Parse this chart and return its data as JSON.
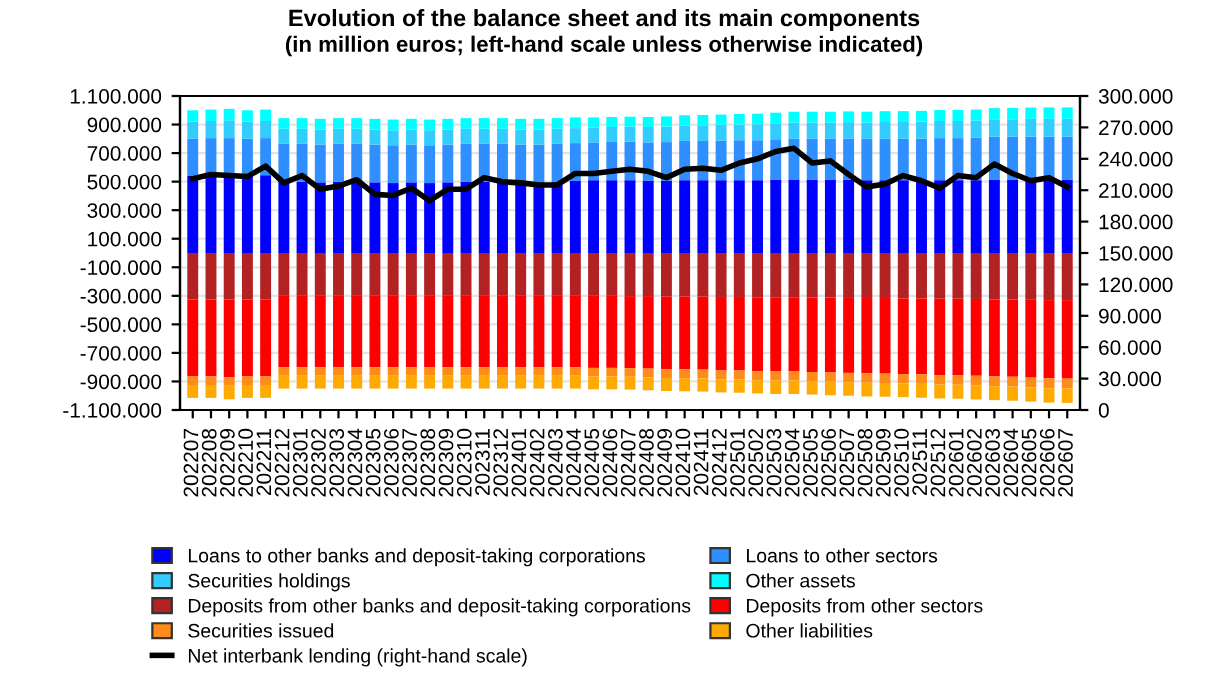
{
  "chart_data": {
    "type": "bar",
    "stacked": true,
    "title": "Evolution of the balance sheet and its main components",
    "subtitle": "(in million euros; left-hand scale unless otherwise indicated)",
    "categories": [
      "202207",
      "202208",
      "202209",
      "202210",
      "202211",
      "202212",
      "202301",
      "202302",
      "202303",
      "202304",
      "202305",
      "202306",
      "202307",
      "202308",
      "202309",
      "202310",
      "202311",
      "202312",
      "202401",
      "202402",
      "202403",
      "202404",
      "202405",
      "202406",
      "202407",
      "202408",
      "202409",
      "202410",
      "202411",
      "202412",
      "202501",
      "202502",
      "202503",
      "202504",
      "202505",
      "202506",
      "202507",
      "202508",
      "202509",
      "202510",
      "202511",
      "202512",
      "202601",
      "202602",
      "202603",
      "202604",
      "202605",
      "202606",
      "202607"
    ],
    "series": [
      {
        "name": "Loans to other banks and deposit-taking corporations",
        "color": "#0000ff",
        "values": [
          540000,
          545000,
          545000,
          540000,
          545000,
          500000,
          500000,
          495000,
          500000,
          500000,
          495000,
          490000,
          495000,
          490000,
          495000,
          500000,
          500000,
          500000,
          495000,
          495000,
          500000,
          505000,
          510000,
          510000,
          510000,
          505000,
          505000,
          510000,
          510000,
          510000,
          510000,
          510000,
          515000,
          515000,
          515000,
          515000,
          515000,
          510000,
          510000,
          510000,
          510000,
          510000,
          510000,
          510000,
          515000,
          515000,
          515000,
          515000,
          515000
        ]
      },
      {
        "name": "Loans to other sectors",
        "color": "#2f8fff",
        "values": [
          260000,
          260000,
          260000,
          260000,
          260000,
          265000,
          265000,
          265000,
          265000,
          265000,
          265000,
          265000,
          265000,
          265000,
          265000,
          265000,
          265000,
          265000,
          265000,
          265000,
          265000,
          265000,
          265000,
          268000,
          270000,
          270000,
          272000,
          275000,
          275000,
          278000,
          280000,
          280000,
          282000,
          285000,
          285000,
          285000,
          287000,
          290000,
          290000,
          290000,
          292000,
          295000,
          295000,
          297000,
          300000,
          300000,
          300000,
          300000,
          300000
        ]
      },
      {
        "name": "Securities holdings",
        "color": "#33ccff",
        "values": [
          120000,
          120000,
          125000,
          120000,
          120000,
          105000,
          105000,
          105000,
          105000,
          105000,
          105000,
          105000,
          105000,
          105000,
          105000,
          105000,
          105000,
          105000,
          105000,
          105000,
          105000,
          105000,
          105000,
          105000,
          105000,
          108000,
          108000,
          108000,
          110000,
          110000,
          110000,
          112000,
          112000,
          115000,
          115000,
          115000,
          115000,
          115000,
          118000,
          118000,
          118000,
          120000,
          120000,
          120000,
          122000,
          122000,
          125000,
          125000,
          125000
        ]
      },
      {
        "name": "Other assets",
        "color": "#00ffff",
        "values": [
          80000,
          80000,
          80000,
          80000,
          80000,
          75000,
          75000,
          75000,
          75000,
          75000,
          75000,
          75000,
          75000,
          75000,
          75000,
          75000,
          75000,
          75000,
          75000,
          75000,
          75000,
          75000,
          70000,
          70000,
          70000,
          70000,
          72000,
          72000,
          72000,
          72000,
          74000,
          74000,
          74000,
          75000,
          75000,
          75000,
          75000,
          75000,
          76000,
          76000,
          76000,
          77000,
          77000,
          78000,
          78000,
          79000,
          79000,
          80000,
          80000
        ]
      },
      {
        "name": "Deposits from other banks and deposit-taking corporations",
        "color": "#b22222",
        "values": [
          -325000,
          -325000,
          -325000,
          -325000,
          -325000,
          -300000,
          -300000,
          -300000,
          -300000,
          -300000,
          -300000,
          -300000,
          -300000,
          -300000,
          -300000,
          -300000,
          -300000,
          -300000,
          -300000,
          -300000,
          -300000,
          -300000,
          -300000,
          -300000,
          -302000,
          -302000,
          -305000,
          -305000,
          -305000,
          -308000,
          -308000,
          -310000,
          -310000,
          -310000,
          -312000,
          -312000,
          -315000,
          -315000,
          -315000,
          -318000,
          -318000,
          -320000,
          -320000,
          -322000,
          -325000,
          -325000,
          -328000,
          -330000,
          -330000
        ]
      },
      {
        "name": "Deposits from other sectors",
        "color": "#ff0000",
        "values": [
          -540000,
          -540000,
          -545000,
          -540000,
          -540000,
          -500000,
          -500000,
          -500000,
          -500000,
          -500000,
          -500000,
          -500000,
          -500000,
          -500000,
          -500000,
          -500000,
          -500000,
          -500000,
          -500000,
          -500000,
          -500000,
          -500000,
          -505000,
          -505000,
          -505000,
          -508000,
          -510000,
          -510000,
          -512000,
          -515000,
          -515000,
          -518000,
          -520000,
          -520000,
          -522000,
          -525000,
          -525000,
          -528000,
          -530000,
          -530000,
          -532000,
          -535000,
          -535000,
          -538000,
          -540000,
          -542000,
          -545000,
          -548000,
          -550000
        ]
      },
      {
        "name": "Securities issued",
        "color": "#ff8c1a",
        "values": [
          -60000,
          -60000,
          -60000,
          -60000,
          -60000,
          -60000,
          -60000,
          -60000,
          -60000,
          -60000,
          -60000,
          -60000,
          -60000,
          -60000,
          -60000,
          -60000,
          -60000,
          -60000,
          -60000,
          -60000,
          -60000,
          -60000,
          -60000,
          -60000,
          -60000,
          -61000,
          -61000,
          -62000,
          -62000,
          -62000,
          -63000,
          -63000,
          -64000,
          -64000,
          -64000,
          -65000,
          -65000,
          -66000,
          -66000,
          -66000,
          -67000,
          -67000,
          -68000,
          -68000,
          -68000,
          -69000,
          -69000,
          -70000,
          -70000
        ]
      },
      {
        "name": "Other liabilities",
        "color": "#ffaa00",
        "values": [
          -90000,
          -90000,
          -95000,
          -90000,
          -90000,
          -90000,
          -90000,
          -90000,
          -90000,
          -90000,
          -90000,
          -90000,
          -90000,
          -90000,
          -90000,
          -90000,
          -90000,
          -90000,
          -90000,
          -90000,
          -90000,
          -90000,
          -90000,
          -90000,
          -90000,
          -91000,
          -91000,
          -92000,
          -92000,
          -92000,
          -93000,
          -93000,
          -94000,
          -94000,
          -94000,
          -95000,
          -95000,
          -96000,
          -96000,
          -96000,
          -97000,
          -97000,
          -98000,
          -98000,
          -98000,
          -99000,
          -99000,
          -100000,
          -100000
        ]
      },
      {
        "name": "Net interbank lending (right-hand scale)",
        "type": "line",
        "axis": "y2",
        "color": "#000000",
        "values": [
          221000,
          225000,
          224000,
          223000,
          233000,
          217000,
          224000,
          211000,
          214000,
          220000,
          206000,
          205000,
          212000,
          200000,
          211000,
          211000,
          222000,
          218000,
          217000,
          215000,
          215000,
          226000,
          226000,
          228000,
          230000,
          228000,
          222000,
          230000,
          231000,
          229000,
          236000,
          240000,
          247000,
          250000,
          236000,
          238000,
          225000,
          213000,
          216000,
          224000,
          219000,
          212000,
          224000,
          222000,
          235000,
          226000,
          219000,
          222000,
          213000
        ]
      }
    ],
    "ylim": [
      -1100000,
      1100000
    ],
    "yticks": [
      {
        "value": -1100000,
        "label": "-1.100.000"
      },
      {
        "value": -900000,
        "label": "-900.000"
      },
      {
        "value": -700000,
        "label": "-700.000"
      },
      {
        "value": -500000,
        "label": "-500.000"
      },
      {
        "value": -300000,
        "label": "-300.000"
      },
      {
        "value": -100000,
        "label": "-100.000"
      },
      {
        "value": 100000,
        "label": "100.000"
      },
      {
        "value": 300000,
        "label": "300.000"
      },
      {
        "value": 500000,
        "label": "500.000"
      },
      {
        "value": 700000,
        "label": "700.000"
      },
      {
        "value": 900000,
        "label": "900.000"
      },
      {
        "value": 1100000,
        "label": "1.100.000"
      }
    ],
    "y2lim": [
      0,
      300000
    ],
    "y2ticks": [
      0,
      {
        "value": 30000,
        "label": "30.000"
      },
      {
        "value": 60000,
        "label": "60.000"
      },
      {
        "value": 90000,
        "label": "90.000"
      },
      {
        "value": 120000,
        "label": "120.000"
      },
      {
        "value": 150000,
        "label": "150.000"
      },
      {
        "value": 180000,
        "label": "180.000"
      },
      {
        "value": 210000,
        "label": "210.000"
      },
      {
        "value": 240000,
        "label": "240.000"
      },
      {
        "value": 270000,
        "label": "270.000"
      },
      {
        "value": 300000,
        "label": "300.000"
      }
    ],
    "grid": "y",
    "legend": "bottom"
  }
}
